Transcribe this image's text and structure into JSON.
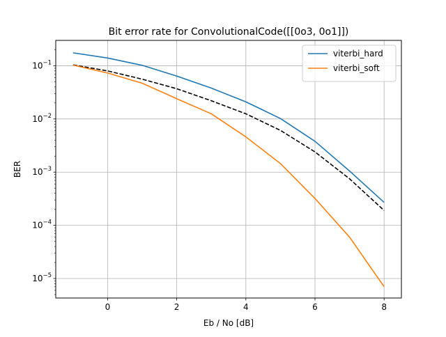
{
  "chart_data": {
    "type": "line",
    "title": "Bit error rate for ConvolutionalCode([[0o3, 0o1]])",
    "xlabel": "Eb / No [dB]",
    "ylabel": "BER",
    "xlim": [
      -1.5,
      8.5
    ],
    "ylim": [
      4.3e-06,
      0.3
    ],
    "yscale": "log",
    "grid": true,
    "legend_position": "top-right",
    "x_ticks": [
      0,
      2,
      4,
      6,
      8
    ],
    "y_ticks": [
      {
        "value": 1e-05,
        "base": "10",
        "exp": "−5"
      },
      {
        "value": 0.0001,
        "base": "10",
        "exp": "−4"
      },
      {
        "value": 0.001,
        "base": "10",
        "exp": "−3"
      },
      {
        "value": 0.01,
        "base": "10",
        "exp": "−2"
      },
      {
        "value": 0.1,
        "base": "10",
        "exp": "−1"
      }
    ],
    "x": [
      -1,
      0,
      1,
      2,
      3,
      4,
      5,
      6,
      7,
      8
    ],
    "series": [
      {
        "name": "viterbi_hard",
        "color": "#1f77b4",
        "style": "solid",
        "in_legend": true,
        "values": [
          0.175,
          0.14,
          0.102,
          0.064,
          0.038,
          0.021,
          0.0102,
          0.0038,
          0.00105,
          0.00027
        ]
      },
      {
        "name": "viterbi_soft",
        "color": "#ff7f0e",
        "style": "solid",
        "in_legend": true,
        "values": [
          0.103,
          0.073,
          0.047,
          0.024,
          0.0125,
          0.0046,
          0.00145,
          0.00032,
          6e-05,
          7e-06
        ]
      },
      {
        "name": "",
        "color": "#000000",
        "style": "dashed",
        "in_legend": false,
        "values": [
          0.104,
          0.08,
          0.056,
          0.037,
          0.022,
          0.0125,
          0.0061,
          0.0024,
          0.00075,
          0.00019
        ]
      }
    ]
  }
}
